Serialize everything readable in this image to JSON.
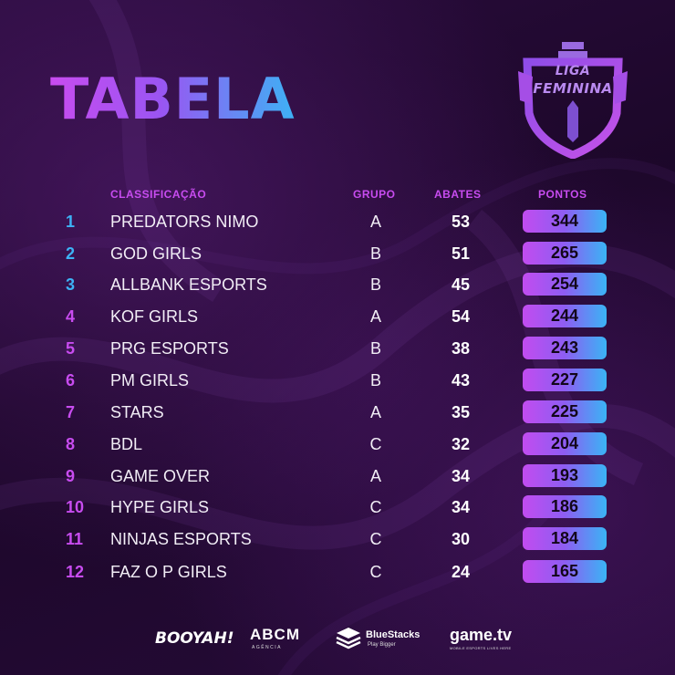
{
  "title": "TABELA",
  "logo": {
    "line1": "LIGA",
    "line2": "FEMININA"
  },
  "headers": {
    "classificacao": "CLASSIFICAÇÃO",
    "grupo": "GRUPO",
    "abates": "ABATES",
    "pontos": "PONTOS"
  },
  "colors": {
    "rank_blue": "#3db2f5",
    "rank_purple": "#c84cf0",
    "header": "#c84cf0"
  },
  "rows": [
    {
      "rank": "1",
      "team": "PREDATORS NIMO",
      "grupo": "A",
      "abates": "53",
      "pontos": "344"
    },
    {
      "rank": "2",
      "team": "GOD GIRLS",
      "grupo": "B",
      "abates": "51",
      "pontos": "265"
    },
    {
      "rank": "3",
      "team": "ALLBANK ESPORTS",
      "grupo": "B",
      "abates": "45",
      "pontos": "254"
    },
    {
      "rank": "4",
      "team": "KOF GIRLS",
      "grupo": "A",
      "abates": "54",
      "pontos": "244"
    },
    {
      "rank": "5",
      "team": "PRG ESPORTS",
      "grupo": "B",
      "abates": "38",
      "pontos": "243"
    },
    {
      "rank": "6",
      "team": "PM GIRLS",
      "grupo": "B",
      "abates": "43",
      "pontos": "227"
    },
    {
      "rank": "7",
      "team": "STARS",
      "grupo": "A",
      "abates": "35",
      "pontos": "225"
    },
    {
      "rank": "8",
      "team": "BDL",
      "grupo": "C",
      "abates": "32",
      "pontos": "204"
    },
    {
      "rank": "9",
      "team": "GAME OVER",
      "grupo": "A",
      "abates": "34",
      "pontos": "193"
    },
    {
      "rank": "10",
      "team": "HYPE GIRLS",
      "grupo": "C",
      "abates": "34",
      "pontos": "186"
    },
    {
      "rank": "11",
      "team": "NINJAS ESPORTS",
      "grupo": "C",
      "abates": "30",
      "pontos": "184"
    },
    {
      "rank": "12",
      "team": "FAZ O P GIRLS",
      "grupo": "C",
      "abates": "24",
      "pontos": "165"
    }
  ],
  "sponsors": {
    "booyah": "BOOYAH!",
    "abcm": "ABCM",
    "abcm_sub": "AGÊNCIA",
    "bluestacks": "BlueStacks",
    "bluestacks_sub": "Play Bigger",
    "gametv": "game.tv",
    "gametv_sub": "MOBILE ESPORTS LIVES HERE"
  }
}
